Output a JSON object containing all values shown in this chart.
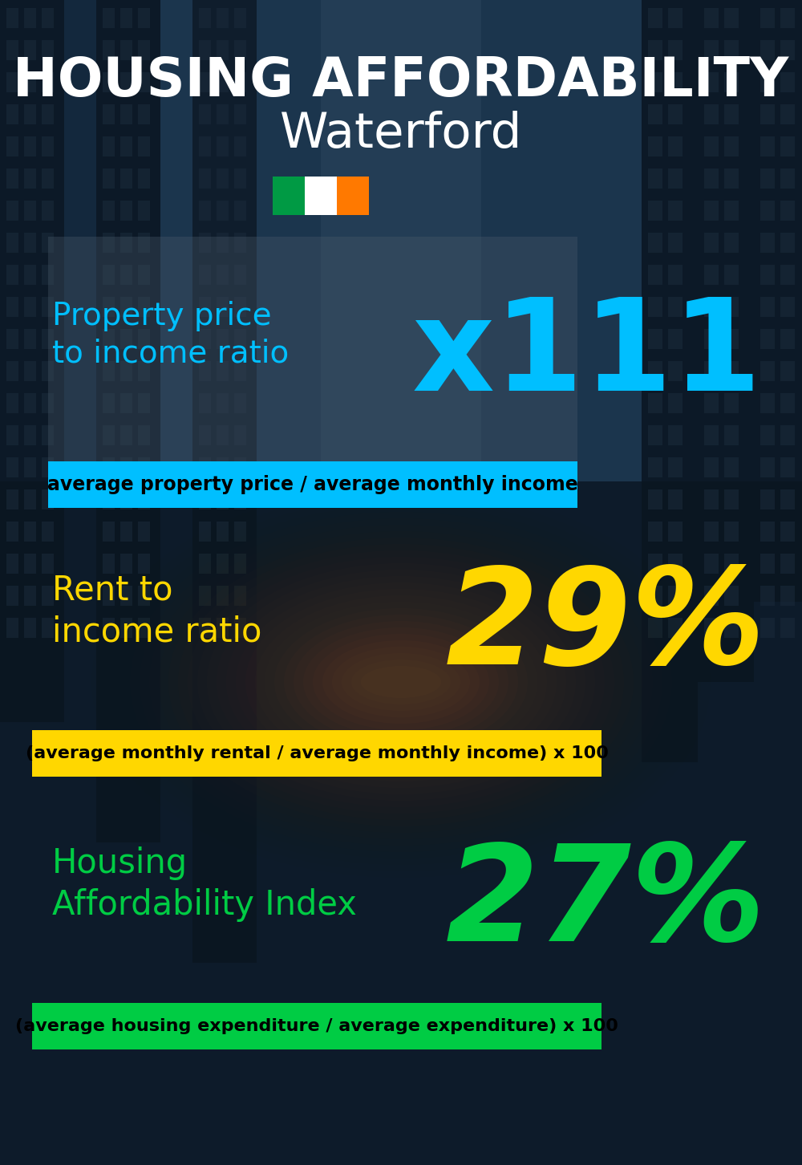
{
  "title_line1": "HOUSING AFFORDABILITY",
  "title_line2": "Waterford",
  "bg_color": "#0d1b2a",
  "section1_label": "Property price\nto income ratio",
  "section1_value": "x111",
  "section1_label_color": "#00bfff",
  "section1_value_color": "#00bfff",
  "section1_banner": "average property price / average monthly income",
  "section1_banner_bg": "#00bfff",
  "section2_label": "Rent to\nincome ratio",
  "section2_value": "29%",
  "section2_label_color": "#ffd700",
  "section2_value_color": "#ffd700",
  "section2_banner": "(average monthly rental / average monthly income) x 100",
  "section2_banner_bg": "#ffd700",
  "section3_label": "Housing\nAffordability Index",
  "section3_value": "27%",
  "section3_label_color": "#00cc44",
  "section3_value_color": "#00cc44",
  "section3_banner": "(average housing expenditure / average expenditure) x 100",
  "section3_banner_bg": "#00cc44",
  "flag_green": "#009A44",
  "flag_white": "#FFFFFF",
  "flag_orange": "#FF7900",
  "panel1_color": "#3a4a5a",
  "panel1_alpha": 0.45
}
